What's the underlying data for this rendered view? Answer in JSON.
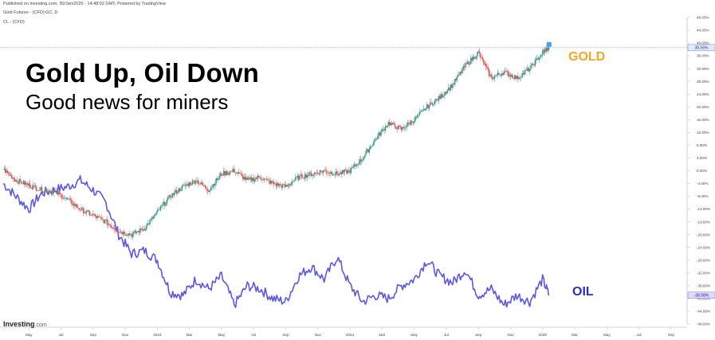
{
  "header": {
    "published": "Published on Investing.com, 30/Jan/2025 - 14:48:02 GMT, Powered by TradingView",
    "symbol1": "Gold Futures - (CFD):GC, D",
    "symbol2": "CL - (CFD)"
  },
  "headline": "Gold Up, Oil Down",
  "subheadline": "Good news for miners",
  "brand": {
    "name": "Investing",
    "suffix": ".com"
  },
  "colors": {
    "gold_candle_up": "#26a69a",
    "gold_candle_down": "#ef5350",
    "gold_label": "#f5a623",
    "oil_line": "#5b57e8",
    "oil_label": "#2f2cc9",
    "ref_line": "#8a8ae6"
  },
  "chart_data": {
    "type": "line",
    "y_axis_unit": "%",
    "ylim": [
      -48,
      48
    ],
    "y_ticks": [
      48,
      44,
      40,
      36,
      32,
      28,
      24,
      20,
      16,
      12,
      8,
      4,
      0,
      -4,
      -8,
      -12,
      -16,
      -20,
      -24,
      -28,
      -32,
      -36,
      -40,
      -44,
      -48
    ],
    "y_tick_labels": [
      "48.00%",
      "44.00%",
      "40.00%",
      "36.00%",
      "32.00%",
      "28.00%",
      "24.00%",
      "20.00%",
      "16.00%",
      "12.00%",
      "8.00%",
      "4.00%",
      "0.00%",
      "-4.00%",
      "-8.00%",
      "-12.00%",
      "-16.00%",
      "-20.00%",
      "-24.00%",
      "-28.00%",
      "-32.00%",
      "-36.00%",
      "-40.00%",
      "-44.00%",
      "-48.00%"
    ],
    "x_ticks": [
      "May",
      "Jul",
      "Sep",
      "Nov",
      "2023",
      "Mar",
      "May",
      "Jul",
      "Sep",
      "Nov",
      "2024",
      "Mar",
      "May",
      "Jul",
      "Sep",
      "Nov",
      "2025",
      "Mar",
      "May",
      "Jul",
      "Sep"
    ],
    "x_tick_pos": [
      0.0,
      0.5,
      1.0,
      1.5,
      2.0,
      2.5,
      3.0,
      3.5,
      4.0,
      4.5,
      5.0,
      5.5,
      6.0,
      6.5,
      7.0,
      7.5,
      8.0,
      8.5,
      9.0,
      9.5,
      10.0
    ],
    "series": [
      {
        "name": "GOLD",
        "style": "candles",
        "current_value_label": "38.56%",
        "x": [
          -0.4,
          -0.2,
          0.0,
          0.2,
          0.4,
          0.6,
          0.8,
          1.0,
          1.2,
          1.4,
          1.6,
          1.8,
          2.0,
          2.2,
          2.4,
          2.6,
          2.8,
          3.0,
          3.2,
          3.4,
          3.6,
          3.8,
          4.0,
          4.2,
          4.4,
          4.6,
          4.8,
          5.0,
          5.2,
          5.4,
          5.6,
          5.8,
          6.0,
          6.2,
          6.4,
          6.6,
          6.8,
          7.0,
          7.2,
          7.4,
          7.6,
          7.8,
          8.0,
          8.1
        ],
        "values": [
          0.5,
          -3,
          -4.5,
          -6,
          -6.5,
          -9,
          -12,
          -14,
          -16,
          -19,
          -20,
          -18,
          -13,
          -8,
          -5,
          -3,
          -6,
          -1,
          0,
          -3,
          -2,
          -4,
          -5,
          -2,
          -1,
          0,
          -1,
          0,
          4,
          10,
          15,
          13,
          16,
          20,
          23,
          27,
          33,
          37,
          29,
          31,
          29,
          32,
          37,
          38.56
        ]
      },
      {
        "name": "OIL",
        "style": "line",
        "current_value_label": "-38.98%",
        "x": [
          -0.4,
          -0.2,
          0.0,
          0.2,
          0.4,
          0.6,
          0.8,
          1.0,
          1.2,
          1.4,
          1.6,
          1.8,
          2.0,
          2.2,
          2.4,
          2.6,
          2.8,
          3.0,
          3.2,
          3.4,
          3.6,
          3.8,
          4.0,
          4.2,
          4.4,
          4.6,
          4.8,
          5.0,
          5.2,
          5.4,
          5.6,
          5.8,
          6.0,
          6.2,
          6.4,
          6.6,
          6.8,
          7.0,
          7.2,
          7.4,
          7.6,
          7.8,
          8.0,
          8.1
        ],
        "values": [
          -4,
          -8,
          -12,
          -7,
          -6,
          -5,
          -3,
          -6,
          -10,
          -20,
          -26,
          -25,
          -28,
          -38,
          -39,
          -34,
          -37,
          -33,
          -42,
          -36,
          -37,
          -40,
          -41,
          -33,
          -30,
          -34,
          -27,
          -36,
          -41,
          -39,
          -40,
          -36,
          -34,
          -28,
          -33,
          -35,
          -31,
          -39,
          -37,
          -42,
          -39,
          -41,
          -34,
          -38.98
        ]
      }
    ],
    "annotations": [
      "GOLD",
      "OIL"
    ]
  }
}
